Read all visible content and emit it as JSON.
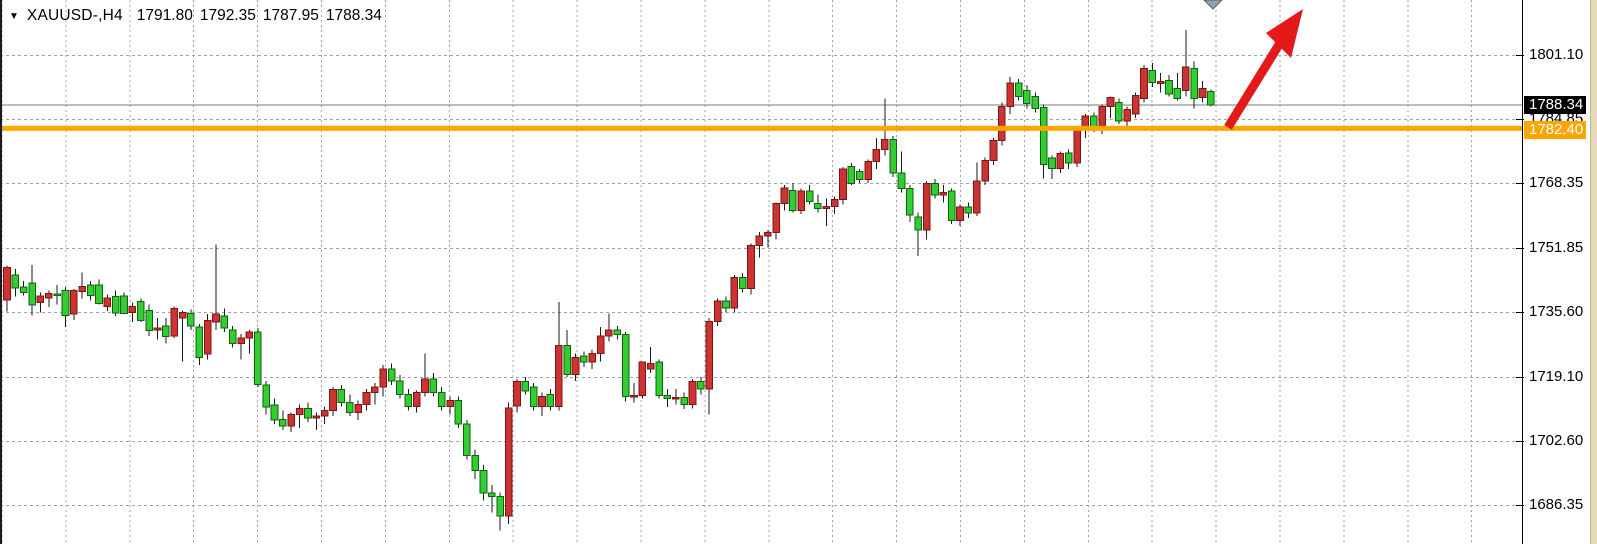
{
  "title": {
    "symbol_timeframe": "XAUUSD-,H4",
    "open": "1791.80",
    "high": "1792.35",
    "low": "1787.95",
    "close": "1788.34"
  },
  "axis": {
    "tick_labels": [
      "1801.10",
      "1784.85",
      "1768.35",
      "1751.85",
      "1735.60",
      "1719.10",
      "1702.60",
      "1686.35"
    ],
    "bid_price": "1788.34",
    "horizontal_line_price": "1782.40"
  },
  "chart_data": {
    "type": "candlestick",
    "symbol": "XAUUSD-",
    "timeframe": "H4",
    "current_ohlc": {
      "open": 1791.8,
      "high": 1792.35,
      "low": 1787.95,
      "close": 1788.34
    },
    "y_ticks": [
      1801.1,
      1784.85,
      1768.35,
      1751.85,
      1735.6,
      1719.1,
      1702.6,
      1686.35
    ],
    "current_price": 1788.34,
    "horizontal_line_price": 1782.4,
    "grid": "dashed",
    "candles_ohlc": [
      [
        1738.6,
        1747.4,
        1735.7,
        1746.9
      ],
      [
        1745.0,
        1746.5,
        1739.5,
        1741.7
      ],
      [
        1742.0,
        1743.5,
        1739.8,
        1740.5
      ],
      [
        1743.0,
        1747.6,
        1734.7,
        1737.3
      ],
      [
        1738.0,
        1740.5,
        1735.5,
        1739.7
      ],
      [
        1739.2,
        1741.0,
        1736.8,
        1740.3
      ],
      [
        1740.2,
        1742.5,
        1737.5,
        1740.0
      ],
      [
        1741.0,
        1742.0,
        1731.8,
        1734.7
      ],
      [
        1735.0,
        1741.5,
        1733.5,
        1741.0
      ],
      [
        1740.8,
        1745.6,
        1739.0,
        1742.1
      ],
      [
        1742.5,
        1743.5,
        1738.5,
        1739.8
      ],
      [
        1742.4,
        1743.8,
        1737.5,
        1737.8
      ],
      [
        1737.0,
        1740.0,
        1735.8,
        1739.2
      ],
      [
        1739.5,
        1741.0,
        1734.5,
        1735.3
      ],
      [
        1739.6,
        1740.5,
        1735.0,
        1735.2
      ],
      [
        1735.5,
        1738.0,
        1733.0,
        1737.0
      ],
      [
        1738.3,
        1739.0,
        1733.0,
        1733.4
      ],
      [
        1736.0,
        1737.5,
        1729.5,
        1730.8
      ],
      [
        1731.0,
        1734.0,
        1728.5,
        1731.5
      ],
      [
        1732.0,
        1734.0,
        1727.5,
        1729.3
      ],
      [
        1729.5,
        1737.0,
        1729.0,
        1736.5
      ],
      [
        1734.0,
        1736.0,
        1723.0,
        1735.5
      ],
      [
        1735.2,
        1736.2,
        1731.0,
        1732.0
      ],
      [
        1731.8,
        1732.5,
        1722.0,
        1724.0
      ],
      [
        1724.9,
        1735.0,
        1723.5,
        1733.4
      ],
      [
        1733.0,
        1752.8,
        1731.0,
        1735.0
      ],
      [
        1734.5,
        1736.5,
        1730.5,
        1731.5
      ],
      [
        1731.0,
        1732.0,
        1726.5,
        1727.5
      ],
      [
        1727.5,
        1730.0,
        1723.5,
        1729.0
      ],
      [
        1729.0,
        1731.0,
        1725.0,
        1730.5
      ],
      [
        1730.5,
        1731.5,
        1716.5,
        1717.1
      ],
      [
        1717.0,
        1718.0,
        1709.5,
        1711.3
      ],
      [
        1711.9,
        1713.5,
        1707.0,
        1708.0
      ],
      [
        1708.2,
        1710.5,
        1705.5,
        1706.5
      ],
      [
        1706.5,
        1710.0,
        1705.0,
        1709.5
      ],
      [
        1709.5,
        1712.0,
        1706.0,
        1711.0
      ],
      [
        1711.0,
        1712.5,
        1707.5,
        1708.5
      ],
      [
        1708.5,
        1710.0,
        1705.5,
        1709.0
      ],
      [
        1709.0,
        1711.5,
        1707.0,
        1710.5
      ],
      [
        1710.5,
        1716.5,
        1709.0,
        1715.8
      ],
      [
        1715.8,
        1717.0,
        1711.5,
        1712.5
      ],
      [
        1712.5,
        1714.5,
        1709.0,
        1710.0
      ],
      [
        1710.0,
        1713.0,
        1708.0,
        1712.0
      ],
      [
        1712.0,
        1716.0,
        1710.5,
        1715.0
      ],
      [
        1715.0,
        1717.5,
        1712.0,
        1716.5
      ],
      [
        1716.5,
        1722.0,
        1714.0,
        1721.0
      ],
      [
        1721.0,
        1722.5,
        1717.0,
        1718.0
      ],
      [
        1718.0,
        1719.5,
        1713.5,
        1714.5
      ],
      [
        1714.5,
        1716.0,
        1710.5,
        1711.5
      ],
      [
        1711.5,
        1715.5,
        1710.0,
        1715.0
      ],
      [
        1715.0,
        1725.0,
        1714.0,
        1718.5
      ],
      [
        1718.5,
        1720.0,
        1714.0,
        1715.0
      ],
      [
        1715.0,
        1716.5,
        1710.5,
        1711.5
      ],
      [
        1711.5,
        1714.0,
        1709.5,
        1713.0
      ],
      [
        1713.0,
        1714.0,
        1706.0,
        1707.0
      ],
      [
        1707.0,
        1708.0,
        1698.0,
        1699.0
      ],
      [
        1699.0,
        1700.5,
        1693.0,
        1695.2
      ],
      [
        1695.2,
        1696.5,
        1687.5,
        1689.4
      ],
      [
        1689.4,
        1691.5,
        1684.5,
        1688.5
      ],
      [
        1688.5,
        1689.5,
        1679.9,
        1683.5
      ],
      [
        1683.5,
        1712.5,
        1681.5,
        1711.1
      ],
      [
        1711.6,
        1718.5,
        1710.0,
        1717.9
      ],
      [
        1717.9,
        1719.0,
        1714.5,
        1715.4
      ],
      [
        1716.4,
        1717.5,
        1710.5,
        1711.5
      ],
      [
        1711.5,
        1715.0,
        1709.0,
        1714.0
      ],
      [
        1714.5,
        1716.0,
        1710.5,
        1711.5
      ],
      [
        1711.5,
        1738.1,
        1710.5,
        1727.0
      ],
      [
        1727.0,
        1731.0,
        1719.0,
        1719.6
      ],
      [
        1719.6,
        1725.0,
        1718.0,
        1724.0
      ],
      [
        1724.4,
        1725.5,
        1721.5,
        1722.8
      ],
      [
        1722.8,
        1726.0,
        1721.0,
        1725.0
      ],
      [
        1725.0,
        1731.8,
        1723.0,
        1729.5
      ],
      [
        1729.5,
        1735.2,
        1728.0,
        1731.0
      ],
      [
        1731.0,
        1732.0,
        1728.5,
        1729.8
      ],
      [
        1729.8,
        1730.5,
        1712.7,
        1714.0
      ],
      [
        1714.0,
        1717.5,
        1712.5,
        1714.3
      ],
      [
        1714.3,
        1723.0,
        1713.5,
        1722.8
      ],
      [
        1721.0,
        1726.6,
        1720.0,
        1722.5
      ],
      [
        1722.8,
        1723.5,
        1713.5,
        1714.3
      ],
      [
        1714.3,
        1716.0,
        1711.3,
        1713.5
      ],
      [
        1713.5,
        1716.0,
        1712.0,
        1713.8
      ],
      [
        1713.8,
        1715.0,
        1710.8,
        1712.0
      ],
      [
        1712.0,
        1718.5,
        1711.0,
        1717.9
      ],
      [
        1717.9,
        1719.0,
        1714.5,
        1716.0
      ],
      [
        1716.0,
        1734.0,
        1709.4,
        1733.1
      ],
      [
        1733.1,
        1739.0,
        1732.0,
        1738.4
      ],
      [
        1738.4,
        1739.5,
        1735.5,
        1736.6
      ],
      [
        1736.6,
        1745.0,
        1735.5,
        1744.4
      ],
      [
        1744.4,
        1745.5,
        1740.5,
        1741.6
      ],
      [
        1741.6,
        1753.0,
        1740.0,
        1752.5
      ],
      [
        1752.5,
        1756.0,
        1749.5,
        1755.0
      ],
      [
        1755.0,
        1756.5,
        1752.0,
        1755.8
      ],
      [
        1755.8,
        1763.5,
        1754.0,
        1763.3
      ],
      [
        1763.3,
        1768.0,
        1761.5,
        1767.2
      ],
      [
        1766.6,
        1768.5,
        1761.0,
        1761.5
      ],
      [
        1761.5,
        1767.0,
        1760.5,
        1766.4
      ],
      [
        1766.4,
        1768.0,
        1763.0,
        1763.8
      ],
      [
        1763.3,
        1765.5,
        1761.0,
        1762.0
      ],
      [
        1762.0,
        1764.5,
        1757.5,
        1762.5
      ],
      [
        1762.5,
        1765.0,
        1760.5,
        1764.3
      ],
      [
        1764.3,
        1772.5,
        1763.0,
        1772.0
      ],
      [
        1772.7,
        1773.5,
        1768.0,
        1768.3
      ],
      [
        1771.4,
        1772.0,
        1768.5,
        1769.3
      ],
      [
        1769.3,
        1774.5,
        1768.5,
        1774.0
      ],
      [
        1774.0,
        1780.0,
        1772.0,
        1777.0
      ],
      [
        1777.0,
        1790.0,
        1775.5,
        1779.5
      ],
      [
        1779.5,
        1780.5,
        1770.0,
        1771.0
      ],
      [
        1771.0,
        1776.5,
        1766.0,
        1767.0
      ],
      [
        1767.0,
        1768.0,
        1758.5,
        1760.3
      ],
      [
        1759.8,
        1761.0,
        1749.8,
        1756.5
      ],
      [
        1756.5,
        1769.0,
        1754.0,
        1768.3
      ],
      [
        1768.3,
        1769.5,
        1764.5,
        1765.4
      ],
      [
        1765.4,
        1768.0,
        1763.5,
        1766.0
      ],
      [
        1766.4,
        1767.0,
        1758.0,
        1758.9
      ],
      [
        1758.9,
        1763.0,
        1757.5,
        1762.3
      ],
      [
        1762.3,
        1763.5,
        1759.5,
        1760.8
      ],
      [
        1760.8,
        1773.7,
        1760.0,
        1769.0
      ],
      [
        1769.0,
        1775.0,
        1768.0,
        1774.2
      ],
      [
        1774.2,
        1780.0,
        1773.0,
        1779.3
      ],
      [
        1779.3,
        1789.0,
        1778.0,
        1788.0
      ],
      [
        1788.0,
        1795.5,
        1786.0,
        1794.0
      ],
      [
        1794.0,
        1795.0,
        1789.5,
        1790.5
      ],
      [
        1792.1,
        1793.5,
        1787.5,
        1788.7
      ],
      [
        1790.5,
        1791.5,
        1786.5,
        1787.4
      ],
      [
        1787.7,
        1788.5,
        1769.6,
        1773.2
      ],
      [
        1774.8,
        1775.5,
        1769.5,
        1772.2
      ],
      [
        1772.2,
        1776.5,
        1771.0,
        1776.0
      ],
      [
        1776.1,
        1777.0,
        1772.0,
        1773.5
      ],
      [
        1773.5,
        1782.5,
        1772.5,
        1782.2
      ],
      [
        1782.2,
        1786.0,
        1780.0,
        1785.5
      ],
      [
        1785.5,
        1786.5,
        1781.5,
        1782.5
      ],
      [
        1782.5,
        1788.5,
        1781.0,
        1788.0
      ],
      [
        1788.0,
        1790.5,
        1785.0,
        1790.2
      ],
      [
        1789.0,
        1790.0,
        1783.5,
        1784.3
      ],
      [
        1784.3,
        1788.0,
        1782.5,
        1787.2
      ],
      [
        1786.1,
        1791.5,
        1785.0,
        1790.8
      ],
      [
        1790.0,
        1798.5,
        1789.0,
        1797.7
      ],
      [
        1797.2,
        1799.0,
        1793.0,
        1794.1
      ],
      [
        1794.1,
        1796.5,
        1791.5,
        1794.3
      ],
      [
        1794.6,
        1796.0,
        1790.5,
        1791.2
      ],
      [
        1792.6,
        1796.5,
        1789.5,
        1790.0
      ],
      [
        1792.1,
        1807.5,
        1790.5,
        1798.0
      ],
      [
        1797.7,
        1799.5,
        1787.4,
        1790.0
      ],
      [
        1790.2,
        1794.5,
        1789.0,
        1792.6
      ],
      [
        1791.8,
        1792.35,
        1787.95,
        1788.34
      ]
    ],
    "annotations": [
      {
        "type": "arrow",
        "name": "bullish-projection-arrow",
        "color": "#e41a1a",
        "anchor_price": 1782.4,
        "direction": "up-right"
      },
      {
        "type": "marker",
        "name": "chart-shift-marker",
        "shape": "triangle-down"
      }
    ]
  },
  "colors": {
    "background": "#ffffff",
    "bull_candle_fill": "#cc3434",
    "bull_candle_border": "#7d1414",
    "bear_candle_fill": "#33cc33",
    "bear_candle_border": "#0c640c",
    "wick": "#1a1a1a",
    "grid": "#9aa5ad",
    "current_price_line": "#7a7a7a",
    "horizontal_line": "#ffa500",
    "bid_box_bg": "#000000",
    "bid_box_text": "#ffffff",
    "hline_box_bg": "#ffa500",
    "hline_box_text": "#ffffff",
    "arrow": "#e41a1a",
    "marker_fill": "#90a0b0",
    "marker_border": "#52616e",
    "axis_text": "#000000",
    "window_edge": "#e3dab9"
  }
}
